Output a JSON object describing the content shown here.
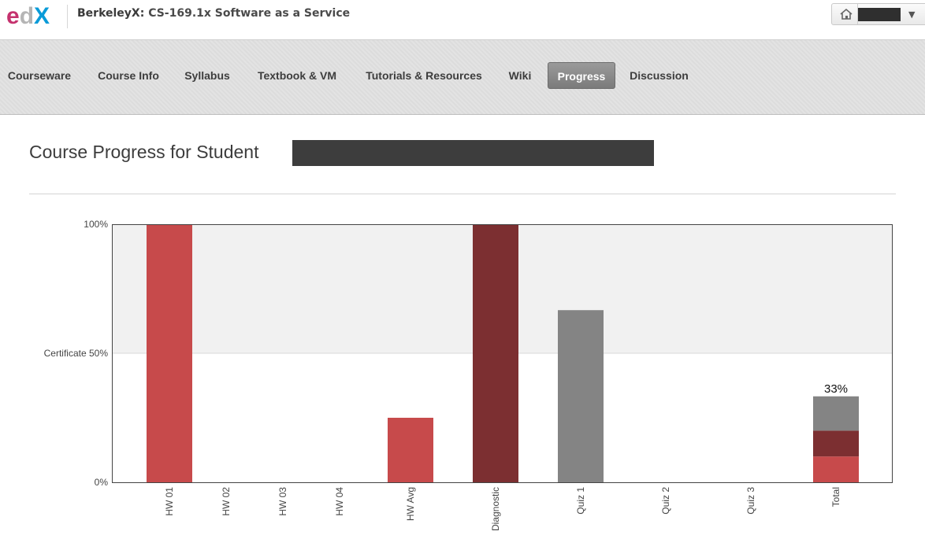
{
  "header": {
    "logo_text": "edX",
    "course_org": "BerkeleyX:",
    "course_name": "CS-169.1x Software as a Service",
    "home_icon": "home-icon",
    "user_name": "██████",
    "dropdown_icon": "chevron-down-icon",
    "dropdown_glyph": "▼"
  },
  "nav": {
    "tabs": [
      {
        "label": "Courseware",
        "active": false
      },
      {
        "label": "Course Info",
        "active": false
      },
      {
        "label": "Syllabus",
        "active": false
      },
      {
        "label": "Textbook & VM",
        "active": false
      },
      {
        "label": "Tutorials & Resources",
        "active": false
      },
      {
        "label": "Wiki",
        "active": false
      },
      {
        "label": "Progress",
        "active": true
      },
      {
        "label": "Discussion",
        "active": false
      }
    ]
  },
  "page": {
    "title": "Course Progress for Student",
    "student_name": "████████████████"
  },
  "colors": {
    "homework": "#c74a4b",
    "diagnostic": "#7c2f31",
    "quiz": "#848484",
    "plot_background_upper": "#f1f1f1",
    "active_tab": "#888888"
  },
  "chart_data": {
    "type": "bar",
    "y_ticks": [
      "100%",
      "Certificate 50%",
      "0%"
    ],
    "ylim": [
      0,
      100
    ],
    "grid": false,
    "shaded_region": [
      50,
      100
    ],
    "categories": [
      "HW 01",
      "HW 02",
      "HW 03",
      "HW 04",
      "HW Avg",
      "Diagnostic",
      "Quiz 1",
      "Quiz 2",
      "Quiz 3",
      "Total"
    ],
    "values": [
      100,
      0,
      0,
      0,
      25,
      100,
      66.7,
      0,
      0,
      33
    ],
    "bar_colors": [
      "#c74a4b",
      "#c74a4b",
      "#c74a4b",
      "#c74a4b",
      "#c74a4b",
      "#7c2f31",
      "#848484",
      "#848484",
      "#848484",
      null
    ],
    "total_stack": [
      {
        "value": 10,
        "color": "#c74a4b"
      },
      {
        "value": 10,
        "color": "#7c2f31"
      },
      {
        "value": 13.3,
        "color": "#848484"
      }
    ],
    "total_label": "33%"
  }
}
